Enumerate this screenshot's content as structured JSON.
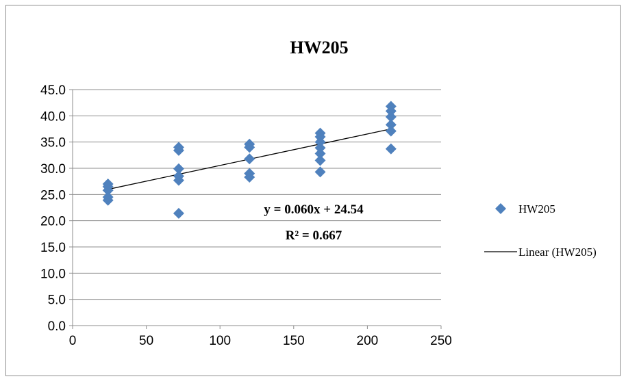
{
  "chart_data": {
    "type": "scatter",
    "title": "HW205",
    "xlabel": "",
    "ylabel": "",
    "xlim": [
      0,
      250
    ],
    "ylim": [
      0,
      45
    ],
    "x_ticks": [
      "0",
      "50",
      "100",
      "150",
      "200",
      "250"
    ],
    "y_ticks": [
      "0.0",
      "5.0",
      "10.0",
      "15.0",
      "20.0",
      "25.0",
      "30.0",
      "35.0",
      "40.0",
      "45.0"
    ],
    "grid": "horizontal",
    "legend_position": "right",
    "marker_color": "#4f81bd",
    "series": [
      {
        "name": "HW205",
        "marker": "diamond",
        "points": [
          [
            24,
            23.9
          ],
          [
            24,
            24.5
          ],
          [
            24,
            25.8
          ],
          [
            24,
            26.5
          ],
          [
            24,
            27.0
          ],
          [
            72,
            21.4
          ],
          [
            72,
            27.7
          ],
          [
            72,
            28.5
          ],
          [
            72,
            29.9
          ],
          [
            72,
            33.4
          ],
          [
            72,
            34.0
          ],
          [
            120,
            28.3
          ],
          [
            120,
            29.0
          ],
          [
            120,
            31.8
          ],
          [
            120,
            34.0
          ],
          [
            120,
            34.6
          ],
          [
            168,
            29.3
          ],
          [
            168,
            31.5
          ],
          [
            168,
            32.8
          ],
          [
            168,
            33.9
          ],
          [
            168,
            35.0
          ],
          [
            168,
            36.0
          ],
          [
            168,
            36.7
          ],
          [
            216,
            33.7
          ],
          [
            216,
            37.1
          ],
          [
            216,
            38.3
          ],
          [
            216,
            39.8
          ],
          [
            216,
            40.9
          ],
          [
            216,
            41.8
          ]
        ]
      },
      {
        "name": "Linear (HW205)",
        "type": "trendline",
        "slope": 0.06,
        "intercept": 24.54,
        "x_range": [
          24,
          216
        ]
      }
    ],
    "annotations": {
      "equation": "y = 0.060x + 24.54",
      "r_squared": "R² = 0.667"
    }
  }
}
